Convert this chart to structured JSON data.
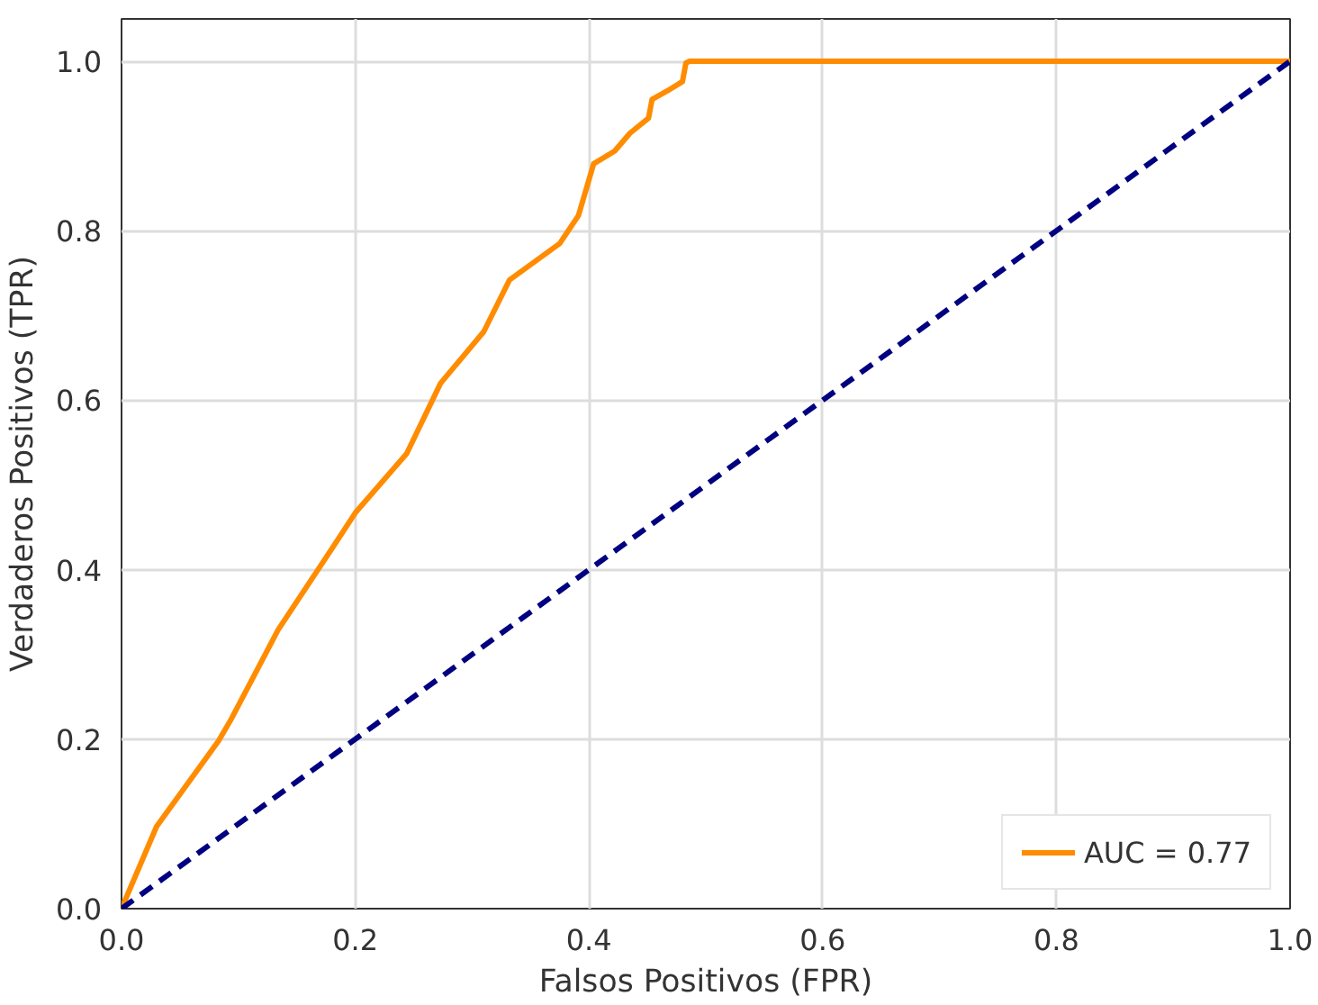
{
  "chart_data": {
    "type": "line",
    "xlabel": "Falsos Positivos (FPR)",
    "ylabel": "Verdaderos Positivos (TPR)",
    "series": [
      {
        "name": "AUC = 0.77",
        "color": "#ff8c00",
        "x": [
          0,
          0.03,
          0.083,
          0.094,
          0.134,
          0.182,
          0.2,
          0.244,
          0.273,
          0.31,
          0.332,
          0.375,
          0.391,
          0.404,
          0.422,
          0.435,
          0.451,
          0.454,
          0.467,
          0.48,
          0.483,
          0.486,
          1.0
        ],
        "values": [
          0,
          0.097,
          0.198,
          0.224,
          0.329,
          0.429,
          0.467,
          0.537,
          0.62,
          0.681,
          0.742,
          0.785,
          0.818,
          0.879,
          0.894,
          0.915,
          0.933,
          0.955,
          0.965,
          0.976,
          0.998,
          1.0,
          1.0
        ]
      },
      {
        "color": "#000080",
        "line_style": "dashed",
        "x": [
          0,
          1
        ],
        "values": [
          0,
          1
        ]
      }
    ],
    "xlim": [
      0,
      1
    ],
    "ylim": [
      0,
      1.05
    ],
    "xticks": [
      {
        "value": 0,
        "label": "0.0"
      },
      0.2,
      0.4,
      0.6,
      0.8,
      {
        "value": 1,
        "label": "1.0"
      }
    ],
    "yticks": [
      {
        "value": 0,
        "label": "0.0"
      },
      0.2,
      0.4,
      0.6,
      0.8,
      {
        "value": 1,
        "label": "1.0"
      }
    ],
    "grid": true,
    "legend": "bottom right"
  }
}
